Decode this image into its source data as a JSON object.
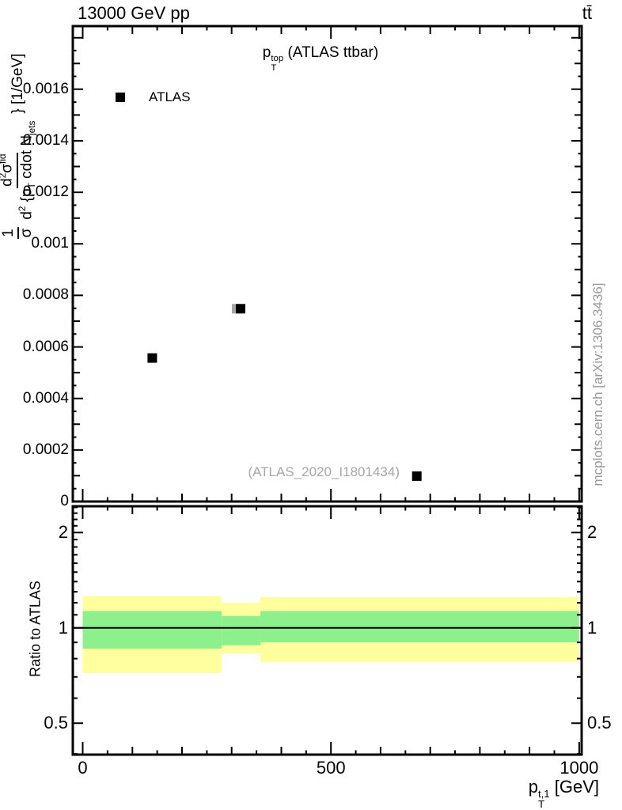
{
  "header": {
    "left": "13000 GeV pp",
    "right": "tt̄"
  },
  "main_panel": {
    "title": {
      "base": "p",
      "sup": "top",
      "sub": "T",
      "rest": " (ATLAS ttbar)"
    },
    "legend": {
      "label": "ATLAS"
    },
    "ref_label": "(ATLAS_2020_I1801434)",
    "ylabel": {
      "pre_num": "1",
      "pre_den": "σ",
      "num_d": "d",
      "num_exp": "2",
      "num_sym": "σ",
      "num_sup": "fid",
      "den_d": "d",
      "den_exp": "2",
      "den_open": " {p",
      "den_sub1": "T",
      "den_mid": " cdot N",
      "den_sub2": "jets",
      "suffix": "} [1/GeV]"
    }
  },
  "ratio_panel": {
    "ylabel": "Ratio to ATLAS"
  },
  "xaxis": {
    "label": {
      "base": "p",
      "sup": "t,1",
      "sub": "T",
      "rest": " [GeV]"
    }
  },
  "watermark": "mcplots.cern.ch [arXiv:1306.3436]",
  "chart_data": {
    "type": "scatter",
    "title": "pT^top (ATLAS ttbar)",
    "xlabel": "pT^{t,1} [GeV]",
    "ylabel": "1/σ d²σ^fid / d²{pT cdot Njets} [1/GeV]",
    "legend_position": "top-left-inside",
    "grid": false,
    "xlim": [
      -20,
      1005
    ],
    "x_ticks": {
      "major": [
        0,
        500,
        1000
      ],
      "labels": [
        "0",
        "500",
        "1000"
      ],
      "range": [
        0,
        1000
      ],
      "minor_step": 50,
      "medium_step": 100
    },
    "main": {
      "ylim": [
        0,
        0.001845
      ],
      "y_ticks": {
        "values": [
          0,
          0.0002,
          0.0004,
          0.0006,
          0.0008,
          0.001,
          0.0012,
          0.0014,
          0.0016
        ],
        "labels": [
          "0",
          "0.0002",
          "0.0004",
          "0.0006",
          "0.0008",
          "0.001",
          "0.0012",
          "0.0014",
          "0.0016"
        ],
        "minor_step": 5e-05,
        "medium_step": 0.0001
      },
      "series": [
        {
          "name": "ATLAS",
          "marker": "square",
          "color": "#000000",
          "points": [
            {
              "x": 140,
              "y": 0.000557
            },
            {
              "x": 318,
              "y": 0.000748
            },
            {
              "x": 673,
              "y": 9.85e-05
            }
          ]
        }
      ],
      "reference_series": {
        "name": "(ATLAS_2020_I1801434)",
        "marker": "square",
        "color": "#a6a6a6",
        "points": [
          {
            "x": 310,
            "y": 0.000748
          }
        ]
      }
    },
    "ratio": {
      "scale": "log",
      "ylim": [
        0.398,
        2.42
      ],
      "y_ticks": {
        "values": [
          0.5,
          1,
          2
        ],
        "labels": [
          "0.5",
          "1",
          "2"
        ],
        "minor": [
          0.4,
          0.6,
          0.7,
          0.8,
          0.9,
          1.1,
          1.2,
          1.3,
          1.4,
          1.5,
          1.6,
          1.7,
          1.8,
          1.9,
          2.1,
          2.2,
          2.3,
          2.4
        ]
      },
      "unity_line": 1,
      "bands": [
        {
          "x0": 0,
          "x1": 280,
          "yellow": [
            0.72,
            1.26
          ],
          "green": [
            0.86,
            1.13
          ]
        },
        {
          "x0": 280,
          "x1": 358,
          "yellow": [
            0.83,
            1.2
          ],
          "green": [
            0.88,
            1.09
          ]
        },
        {
          "x0": 358,
          "x1": 1000,
          "yellow": [
            0.78,
            1.25
          ],
          "green": [
            0.9,
            1.13
          ]
        }
      ]
    },
    "colors": {
      "band_yellow": "#ffff9e",
      "band_green": "#8df08d",
      "marker": "#000000",
      "ref_gray": "#a6a6a6",
      "axis": "#000000"
    }
  }
}
